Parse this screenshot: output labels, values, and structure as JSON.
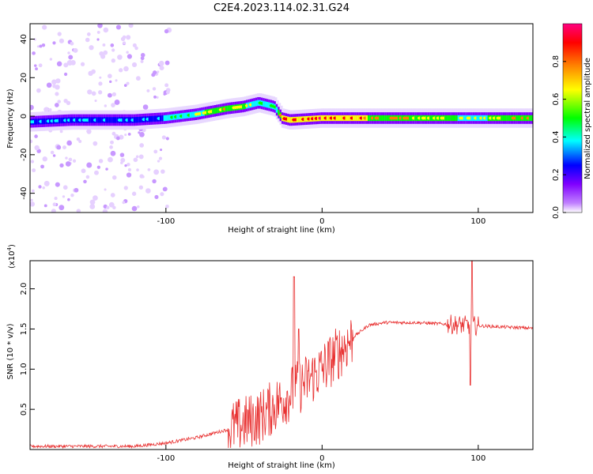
{
  "title": "C2E4.2023.114.02.31.G24",
  "chart_data": [
    {
      "type": "heatmap",
      "xlabel": "Height of straight line (km)",
      "ylabel": "Frequency (Hz)",
      "xlim": [
        -187,
        135
      ],
      "ylim": [
        -50,
        48
      ],
      "x_ticks": [
        -100,
        0,
        100
      ],
      "y_ticks": [
        -40,
        -20,
        0,
        20,
        40
      ],
      "colorbar": {
        "label": "Normalized spectral amplitude",
        "range": [
          0,
          1
        ],
        "ticks": [
          0.0,
          0.2,
          0.4,
          0.6,
          0.8
        ],
        "colormap": [
          "#ffffff",
          "#8000ff",
          "#0000ff",
          "#00ffff",
          "#00ff00",
          "#ffff00",
          "#ff8000",
          "#ff0000",
          "#ff0080"
        ]
      },
      "ridge": {
        "x": [
          -187,
          -160,
          -140,
          -120,
          -100,
          -80,
          -60,
          -50,
          -40,
          -30,
          -25,
          -20,
          0,
          50,
          100,
          135
        ],
        "freq": [
          -3,
          -2,
          -2,
          -2,
          -1,
          1,
          4,
          5,
          7,
          5,
          -1,
          -2,
          -1,
          -1,
          -1,
          -1
        ],
        "amplitude": [
          0.35,
          0.35,
          0.35,
          0.35,
          0.45,
          0.6,
          0.7,
          0.65,
          0.5,
          0.5,
          0.85,
          0.85,
          0.95,
          0.7,
          0.6,
          0.75
        ]
      },
      "grid": false
    },
    {
      "type": "line",
      "xlabel": "Height of straight line (km)",
      "ylabel": "SNR (10 * v/v)",
      "y_multiplier": "(x10",
      "y_multiplier_exp": "4",
      "y_multiplier_close": ")",
      "xlim": [
        -187,
        135
      ],
      "ylim": [
        0,
        2.35
      ],
      "x_ticks": [
        -100,
        0,
        100
      ],
      "y_ticks": [
        0.5,
        1.0,
        1.5,
        2.0
      ],
      "series_color": "#e83030",
      "envelope": {
        "x": [
          -187,
          -150,
          -120,
          -100,
          -80,
          -60,
          -40,
          -30,
          -20,
          -10,
          0,
          10,
          20,
          30,
          40,
          60,
          80,
          90,
          100,
          110,
          135
        ],
        "y": [
          0.04,
          0.04,
          0.04,
          0.08,
          0.15,
          0.25,
          0.4,
          0.55,
          0.7,
          0.85,
          1.0,
          1.2,
          1.4,
          1.55,
          1.58,
          1.58,
          1.56,
          1.55,
          1.54,
          1.53,
          1.51
        ]
      },
      "spikes": [
        {
          "x": -18,
          "y": 2.15
        },
        {
          "x": -15,
          "y": 1.5
        },
        {
          "x": 96,
          "y": 2.35
        },
        {
          "x": 95,
          "y": 0.8
        }
      ],
      "grid": false
    }
  ]
}
